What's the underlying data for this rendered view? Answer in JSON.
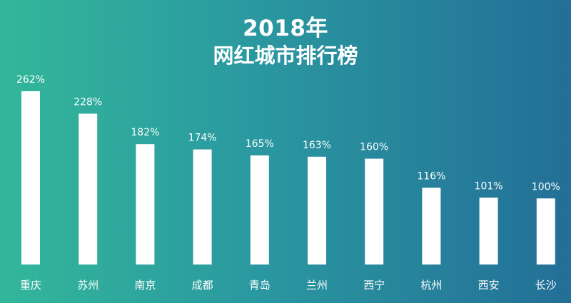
{
  "chart_data": {
    "type": "bar",
    "title": "2018年",
    "subtitle": "网红城市排行榜",
    "categories": [
      "重庆",
      "苏州",
      "南京",
      "成都",
      "青岛",
      "兰州",
      "西宁",
      "杭州",
      "西安",
      "长沙"
    ],
    "values": [
      262,
      228,
      182,
      174,
      165,
      163,
      160,
      116,
      101,
      100
    ],
    "value_labels": [
      "262%",
      "228%",
      "182%",
      "174%",
      "165%",
      "163%",
      "160%",
      "116%",
      "101%",
      "100%"
    ],
    "xlabel": "",
    "ylabel": "",
    "ylim": [
      0,
      262
    ],
    "grid": false,
    "legend": "none",
    "colors": {
      "bar": "#ffffff",
      "background_start": "#33b79a",
      "background_end": "#236f97",
      "text": "#ffffff"
    }
  }
}
